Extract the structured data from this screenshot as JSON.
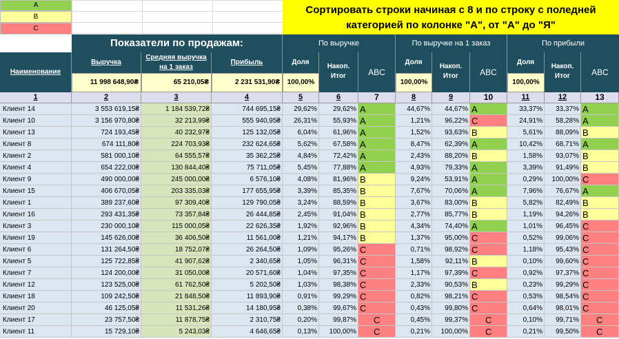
{
  "legend": [
    {
      "label": "A",
      "color": "#92d050"
    },
    {
      "label": "B",
      "color": "#ffff99"
    },
    {
      "label": "C",
      "color": "#ff8080"
    }
  ],
  "title": "Сортировать строки начиная с 8 и по строку с поледней категорией по колонке \"А\", от \"А\" до \"Я\"",
  "header": {
    "main_title": "Показатели по продажам:",
    "group_revenue": "По выручке",
    "group_avg": "По выручке на 1 заказ",
    "group_profit": "По прибыли",
    "name": "Наименование",
    "revenue": "Выручка",
    "avg_revenue": "Средняя выручка на 1 заказ",
    "profit": "Прибыль",
    "share": "Доля",
    "cumulative": "Накоп. Итог",
    "abc": "ABC"
  },
  "totals": {
    "revenue": "11 998 648,90₴",
    "avg_revenue": "65 210,05₴",
    "profit": "2 231 531,90₴",
    "share_rev": "100,00%",
    "share_avg": "100,00%",
    "share_profit": "100,00%"
  },
  "col_numbers": [
    "1",
    "2",
    "3",
    "4",
    "5",
    "6",
    "7",
    "8",
    "9",
    "10",
    "11",
    "12",
    "13"
  ],
  "rows": [
    {
      "name": "Клиент 14",
      "rev": "3 553 619,15₴",
      "avg": "1 184 539,72₴",
      "prof": "744 695,15₴",
      "s1": "29,62%",
      "c1": "29,62%",
      "a1": "A",
      "s2": "44,67%",
      "c2": "44,67%",
      "a2": "A",
      "s3": "33,37%",
      "c3": "33,37%",
      "a3": "A"
    },
    {
      "name": "Клиент 10",
      "rev": "3 156 970,80₴",
      "avg": "32 213,99₴",
      "prof": "555 940,95₴",
      "s1": "26,31%",
      "c1": "55,93%",
      "a1": "A",
      "s2": "1,21%",
      "c2": "96,22%",
      "a2": "C",
      "s3": "24,91%",
      "c3": "58,28%",
      "a3": "A"
    },
    {
      "name": "Клиент 13",
      "rev": "724 193,45₴",
      "avg": "40 232,97₴",
      "prof": "125 132,05₴",
      "s1": "6,04%",
      "c1": "61,96%",
      "a1": "A",
      "s2": "1,52%",
      "c2": "93,63%",
      "a2": "B",
      "s3": "5,61%",
      "c3": "88,09%",
      "a3": "B"
    },
    {
      "name": "Клиент 8",
      "rev": "674 111,80₴",
      "avg": "224 703,93₴",
      "prof": "232 624,65₴",
      "s1": "5,62%",
      "c1": "67,58%",
      "a1": "A",
      "s2": "8,47%",
      "c2": "62,39%",
      "a2": "A",
      "s3": "10,42%",
      "c3": "68,71%",
      "a3": "A"
    },
    {
      "name": "Клиент 2",
      "rev": "581 000,10₴",
      "avg": "64 555,57₴",
      "prof": "35 362,25₴",
      "s1": "4,84%",
      "c1": "72,42%",
      "a1": "A",
      "s2": "2,43%",
      "c2": "88,20%",
      "a2": "B",
      "s3": "1,58%",
      "c3": "93,07%",
      "a3": "B"
    },
    {
      "name": "Клиент 4",
      "rev": "654 222,00₴",
      "avg": "130 844,40₴",
      "prof": "75 711,05₴",
      "s1": "5,45%",
      "c1": "77,88%",
      "a1": "A",
      "s2": "4,93%",
      "c2": "79,33%",
      "a2": "A",
      "s3": "3,39%",
      "c3": "91,49%",
      "a3": "B"
    },
    {
      "name": "Клиент 9",
      "rev": "490 000,00₴",
      "avg": "245 000,00₴",
      "prof": "6 576,10₴",
      "s1": "4,08%",
      "c1": "81,96%",
      "a1": "B",
      "s2": "9,24%",
      "c2": "53,91%",
      "a2": "A",
      "s3": "0,29%",
      "c3": "100,00%",
      "a3": "C"
    },
    {
      "name": "Клиент 15",
      "rev": "406 670,05₴",
      "avg": "203 335,03₴",
      "prof": "177 655,95₴",
      "s1": "3,39%",
      "c1": "85,35%",
      "a1": "B",
      "s2": "7,67%",
      "c2": "70,06%",
      "a2": "A",
      "s3": "7,96%",
      "c3": "76,67%",
      "a3": "A"
    },
    {
      "name": "Клиент 1",
      "rev": "389 237,60₴",
      "avg": "97 309,40₴",
      "prof": "129 790,05₴",
      "s1": "3,24%",
      "c1": "88,59%",
      "a1": "B",
      "s2": "3,67%",
      "c2": "83,00%",
      "a2": "B",
      "s3": "5,82%",
      "c3": "82,49%",
      "a3": "B"
    },
    {
      "name": "Клиент 16",
      "rev": "293 431,35₴",
      "avg": "73 357,84₴",
      "prof": "26 444,85₴",
      "s1": "2,45%",
      "c1": "91,04%",
      "a1": "B",
      "s2": "2,77%",
      "c2": "85,77%",
      "a2": "B",
      "s3": "1,19%",
      "c3": "94,26%",
      "a3": "B"
    },
    {
      "name": "Клиент 3",
      "rev": "230 000,10₴",
      "avg": "115 000,05₴",
      "prof": "22 626,35₴",
      "s1": "1,92%",
      "c1": "92,96%",
      "a1": "B",
      "s2": "4,34%",
      "c2": "74,40%",
      "a2": "A",
      "s3": "1,01%",
      "c3": "96,45%",
      "a3": "C"
    },
    {
      "name": "Клиент 19",
      "rev": "145 626,00₴",
      "avg": "36 406,50₴",
      "prof": "11 561,00₴",
      "s1": "1,21%",
      "c1": "94,17%",
      "a1": "B",
      "s2": "1,37%",
      "c2": "95,00%",
      "a2": "C",
      "s3": "0,52%",
      "c3": "99,06%",
      "a3": "C"
    },
    {
      "name": "Клиент 6",
      "rev": "131 264,50₴",
      "avg": "18 752,07₴",
      "prof": "26 264,50₴",
      "s1": "1,09%",
      "c1": "95,26%",
      "a1": "C",
      "s2": "0,71%",
      "c2": "98,92%",
      "a2": "C",
      "s3": "1,18%",
      "c3": "95,43%",
      "a3": "C"
    },
    {
      "name": "Клиент 5",
      "rev": "125 722,85₴",
      "avg": "41 907,62₴",
      "prof": "2 340,65₴",
      "s1": "1,05%",
      "c1": "96,31%",
      "a1": "C",
      "s2": "1,58%",
      "c2": "92,11%",
      "a2": "B",
      "s3": "0,10%",
      "c3": "99,60%",
      "a3": "C"
    },
    {
      "name": "Клиент 7",
      "rev": "124 200,00₴",
      "avg": "31 050,00₴",
      "prof": "20 571,60₴",
      "s1": "1,04%",
      "c1": "97,35%",
      "a1": "C",
      "s2": "1,17%",
      "c2": "97,39%",
      "a2": "C",
      "s3": "0,92%",
      "c3": "97,37%",
      "a3": "C"
    },
    {
      "name": "Клиент 12",
      "rev": "123 525,00₴",
      "avg": "61 762,50₴",
      "prof": "5 202,50₴",
      "s1": "1,03%",
      "c1": "98,38%",
      "a1": "C",
      "s2": "2,33%",
      "c2": "90,53%",
      "a2": "B",
      "s3": "0,23%",
      "c3": "99,29%",
      "a3": "C"
    },
    {
      "name": "Клиент 18",
      "rev": "109 242,50₴",
      "avg": "21 848,50₴",
      "prof": "11 893,90₴",
      "s1": "0,91%",
      "c1": "99,29%",
      "a1": "C",
      "s2": "0,82%",
      "c2": "98,21%",
      "a2": "C",
      "s3": "0,53%",
      "c3": "98,54%",
      "a3": "C"
    },
    {
      "name": "Клиент 20",
      "rev": "46 125,05₴",
      "avg": "11 531,26₴",
      "prof": "14 180,95₴",
      "s1": "0,38%",
      "c1": "99,67%",
      "a1": "C",
      "s2": "0,43%",
      "c2": "99,80%",
      "a2": "C",
      "s3": "0,64%",
      "c3": "98,01%",
      "a3": "C"
    },
    {
      "name": "Клиент 17",
      "rev": "23 757,50₴",
      "avg": "11 878,75₴",
      "prof": "2 310,75₴",
      "s1": "0,20%",
      "c1": "99,87%",
      "a1": "C",
      "s2": "0,45%",
      "c2": "99,37%",
      "a2": "C",
      "s3": "0,10%",
      "c3": "99,71%",
      "a3": "C"
    },
    {
      "name": "Клиент 11",
      "rev": "15 729,10₴",
      "avg": "5 243,03₴",
      "prof": "4 646,65₴",
      "s1": "0,13%",
      "c1": "100,00%",
      "a1": "C",
      "s2": "0,21%",
      "c2": "100,00%",
      "a2": "C",
      "s3": "0,21%",
      "c3": "99,50%",
      "a3": "C"
    }
  ]
}
